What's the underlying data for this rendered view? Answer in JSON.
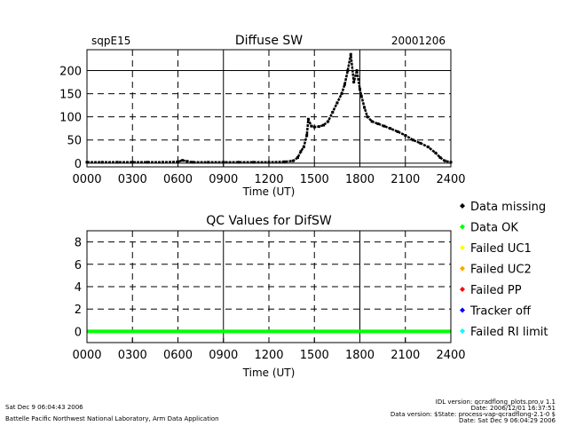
{
  "chart_data": [
    {
      "type": "scatter",
      "station": "sqpE15",
      "title": "Diffuse SW",
      "date": "20001206",
      "xlabel": "Time (UT)",
      "ylabel": "",
      "xlim": [
        0,
        24
      ],
      "ylim": [
        -8,
        245
      ],
      "x_ticks": [
        0,
        3,
        6,
        9,
        12,
        15,
        18,
        21,
        24
      ],
      "x_tick_labels": [
        "0000",
        "0300",
        "0600",
        "0900",
        "1200",
        "1500",
        "1800",
        "2100",
        "2400"
      ],
      "y_ticks": [
        0,
        50,
        100,
        150,
        200
      ],
      "y_tick_labels": [
        "0",
        "50",
        "100",
        "150",
        "200"
      ],
      "grid": true,
      "series": [
        {
          "color": "#000000",
          "x": [
            0,
            1,
            2,
            3,
            4,
            5,
            6,
            6.3,
            6.6,
            7,
            8,
            9,
            10,
            11,
            12,
            13,
            13.6,
            13.9,
            14.1,
            14.3,
            14.5,
            14.6,
            14.8,
            15.0,
            15.3,
            15.6,
            15.9,
            16.2,
            16.5,
            16.8,
            17.0,
            17.2,
            17.4,
            17.6,
            17.8,
            18.0,
            18.1,
            18.3,
            18.5,
            18.8,
            19.2,
            19.6,
            20.0,
            20.5,
            21.0,
            21.5,
            22.0,
            22.5,
            23.0,
            23.3,
            23.6,
            24.0
          ],
          "y": [
            2,
            2,
            2,
            2,
            2,
            2,
            3,
            6,
            4,
            2,
            2,
            2,
            2,
            2,
            2,
            3,
            5,
            12,
            25,
            35,
            60,
            95,
            80,
            78,
            79,
            82,
            90,
            110,
            130,
            150,
            170,
            200,
            235,
            175,
            200,
            160,
            145,
            120,
            100,
            90,
            85,
            80,
            75,
            68,
            60,
            50,
            43,
            35,
            22,
            12,
            5,
            2
          ]
        }
      ]
    },
    {
      "type": "scatter",
      "title": "QC Values for DifSW",
      "xlabel": "Time (UT)",
      "ylabel": "",
      "xlim": [
        0,
        24
      ],
      "ylim": [
        -1,
        9
      ],
      "x_ticks": [
        0,
        3,
        6,
        9,
        12,
        15,
        18,
        21,
        24
      ],
      "x_tick_labels": [
        "0000",
        "0300",
        "0600",
        "0900",
        "1200",
        "1500",
        "1800",
        "2100",
        "2400"
      ],
      "y_ticks": [
        0,
        2,
        4,
        6,
        8
      ],
      "y_tick_labels": [
        "0",
        "2",
        "4",
        "6",
        "8"
      ],
      "grid": true,
      "series": [
        {
          "color": "#00ff00",
          "x": [
            0,
            24
          ],
          "y": [
            0,
            0
          ]
        }
      ]
    }
  ],
  "legend": [
    {
      "label": "Data missing",
      "color": "#000000"
    },
    {
      "label": "Data OK",
      "color": "#00ff00"
    },
    {
      "label": "Failed UC1",
      "color": "#ffff00"
    },
    {
      "label": "Failed UC2",
      "color": "#ffa500"
    },
    {
      "label": "Failed PP",
      "color": "#ff0000"
    },
    {
      "label": "Tracker off",
      "color": "#0000ff"
    },
    {
      "label": "Failed RI limit",
      "color": "#00ffff"
    }
  ],
  "footer": {
    "run_date": "Sat Dec  9 06:04:43 2006",
    "lab": "Battelle Pacific Northwest National Laboratory, Arm Data Application",
    "idl_version": "IDL version: qcradflong_plots.pro,v 1.1",
    "date_line": "Date: 2006/12/01 16:37:51",
    "data_version": "Data version: $State: process-vap-qcradflong-2.1-0 $",
    "date_sat": "Date: Sat Dec  9 06:04:29 2006"
  }
}
